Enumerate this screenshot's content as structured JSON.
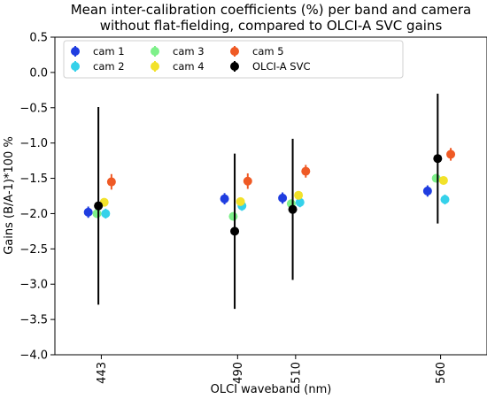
{
  "chart_data": {
    "type": "scatter",
    "title_lines": [
      "Mean inter-calibration coefficients (%) per band and camera",
      "without flat-fielding, compared to OLCI-A SVC gains"
    ],
    "xlabel": "OLCI waveband (nm)",
    "ylabel": "Gains (B/A-1)*100 %",
    "xlim": [
      427,
      576
    ],
    "ylim": [
      -4.0,
      0.5
    ],
    "xticks": [
      "443",
      "490",
      "510",
      "560"
    ],
    "yticks": [
      "0.5",
      "0.0",
      "−0.5",
      "−1.0",
      "−1.5",
      "−2.0",
      "−2.5",
      "−3.0",
      "−3.5",
      "−4.0"
    ],
    "grid": false,
    "legend_position": "top",
    "legend_columns": 4,
    "series": [
      {
        "name": "cam 1",
        "color": "#1f3de0",
        "x": [
          438.5,
          485.5,
          505.5,
          555.5
        ],
        "y": [
          -1.98,
          -1.79,
          -1.78,
          -1.68
        ],
        "err": [
          0.08,
          0.08,
          0.08,
          0.08
        ]
      },
      {
        "name": "cam 2",
        "color": "#35d1ea",
        "x": [
          444.5,
          491.5,
          511.5,
          561.5
        ],
        "y": [
          -2.0,
          -1.89,
          -1.84,
          -1.8
        ],
        "err": [
          0.07,
          0.07,
          0.07,
          0.07
        ]
      },
      {
        "name": "cam 3",
        "color": "#7ef08a",
        "x": [
          441.5,
          488.5,
          508.5,
          558.5
        ],
        "y": [
          -2.0,
          -2.04,
          -1.86,
          -1.5
        ],
        "err": [
          0.05,
          0.05,
          0.05,
          0.05
        ]
      },
      {
        "name": "cam 4",
        "color": "#f2e22a",
        "x": [
          444,
          491,
          511,
          561
        ],
        "y": [
          -1.84,
          -1.83,
          -1.74,
          -1.53
        ],
        "err": [
          0.05,
          0.05,
          0.05,
          0.05
        ]
      },
      {
        "name": "cam 5",
        "color": "#ef5a25",
        "x": [
          446.5,
          493.5,
          513.5,
          563.5
        ],
        "y": [
          -1.55,
          -1.54,
          -1.4,
          -1.16
        ],
        "err": [
          0.11,
          0.11,
          0.09,
          0.09
        ]
      },
      {
        "name": "OLCI-A SVC",
        "color": "#000000",
        "x": [
          442,
          489,
          509,
          559
        ],
        "y": [
          -1.89,
          -2.25,
          -1.94,
          -1.22
        ],
        "err": [
          1.4,
          1.1,
          1.0,
          0.92
        ]
      }
    ]
  }
}
